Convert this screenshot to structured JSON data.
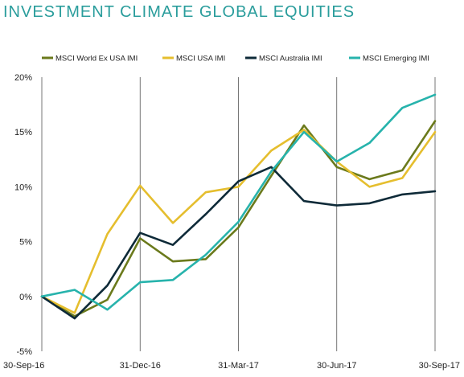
{
  "page_title": "INVESTMENT CLIMATE GLOBAL EQUITIES",
  "chart_data": {
    "type": "line",
    "title": "INVESTMENT CLIMATE GLOBAL EQUITIES",
    "x_points": 13,
    "x_tick_labels": [
      "30-Sep-16",
      "31-Dec-16",
      "31-Mar-17",
      "30-Jun-17",
      "30-Sep-17"
    ],
    "x_tick_index": [
      0,
      3,
      6,
      9,
      12
    ],
    "ylim": [
      -5,
      20
    ],
    "y_ticks": [
      -5,
      0,
      5,
      10,
      15,
      20
    ],
    "y_tick_labels": [
      "-5%",
      "0%",
      "5%",
      "10%",
      "15%",
      "20%"
    ],
    "grid": "vertical at labeled dates",
    "legend_position": "top",
    "series": [
      {
        "name": "MSCI World Ex USA IMI",
        "color": "#6b7a1c",
        "values": [
          0,
          -1.8,
          -0.3,
          5.3,
          3.2,
          3.4,
          6.3,
          11.0,
          15.6,
          11.8,
          10.7,
          11.5,
          16.0
        ]
      },
      {
        "name": "MSCI USA IMI",
        "color": "#e5be2e",
        "values": [
          0,
          -1.5,
          5.7,
          10.1,
          6.7,
          9.5,
          10.0,
          13.3,
          15.2,
          12.3,
          10.0,
          10.8,
          15.0
        ]
      },
      {
        "name": "MSCI Australia IMI",
        "color": "#0e2a38",
        "values": [
          0,
          -2.0,
          1.0,
          5.8,
          4.7,
          7.5,
          10.5,
          11.8,
          8.7,
          8.3,
          8.5,
          9.3,
          9.6
        ]
      },
      {
        "name": "MSCI Emerging IMI",
        "color": "#27b3ac",
        "values": [
          0,
          0.6,
          -1.2,
          1.3,
          1.5,
          3.8,
          6.8,
          11.4,
          15.0,
          12.3,
          14.0,
          17.2,
          18.4
        ]
      }
    ]
  }
}
